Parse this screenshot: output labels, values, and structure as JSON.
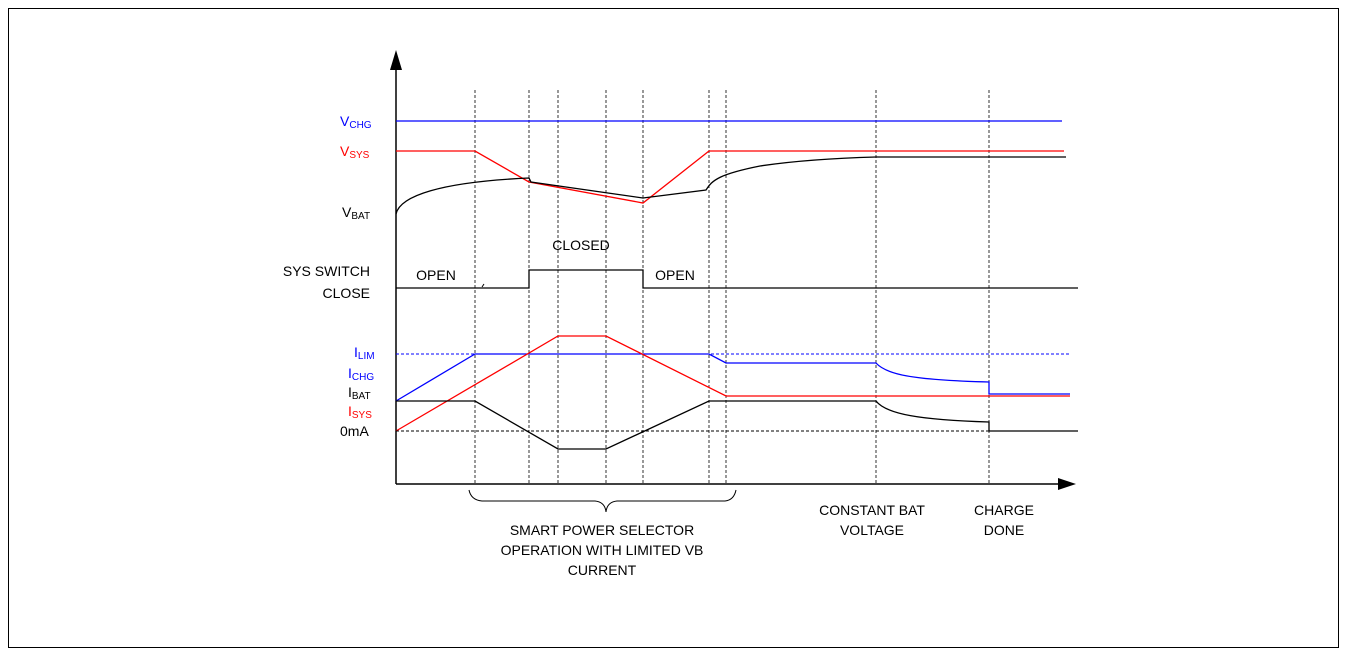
{
  "colors": {
    "blue": "#0000ff",
    "red": "#ff0000",
    "black": "#000000"
  },
  "signals": {
    "vchg": {
      "main": "V",
      "sub": "CHG"
    },
    "vsys": {
      "main": "V",
      "sub": "SYS"
    },
    "vbat": {
      "main": "V",
      "sub": "BAT"
    },
    "ilim": {
      "main": "I",
      "sub": "LIM"
    },
    "ichg": {
      "main": "I",
      "sub": "CHG"
    },
    "ibat": {
      "main": "I",
      "sub": "BAT"
    },
    "isys": {
      "main": "I",
      "sub": "SYS"
    },
    "zero": "0mA"
  },
  "switch": {
    "label_line1": "SYS SWITCH",
    "label_line2": "CLOSE",
    "state_open_1": "OPEN",
    "state_closed": "CLOSED",
    "state_open_2": "OPEN"
  },
  "annotations": {
    "smart_line1": "SMART POWER SELECTOR",
    "smart_line2": "OPERATION WITH LIMITED VB",
    "smart_line3": "CURRENT",
    "const_line1": "CONSTANT BAT",
    "const_line2": "VOLTAGE",
    "done_line1": "CHARGE",
    "done_line2": "DONE"
  }
}
